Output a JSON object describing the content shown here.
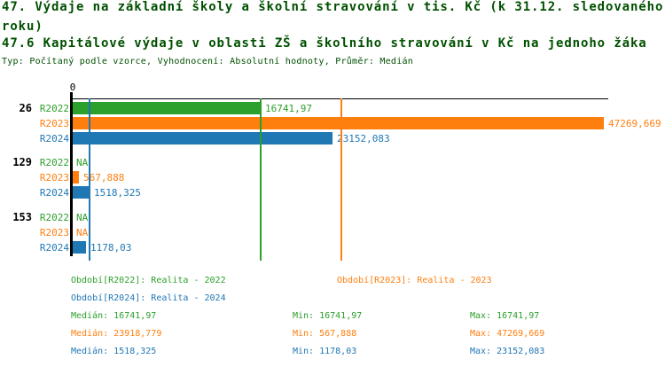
{
  "title": {
    "line1": "47. Výdaje na základní školy a školní stravování v tis. Kč (k 31.12. sledovaného",
    "line2": "roku)",
    "line3": "47.6 Kapitálové výdaje v oblasti ZŠ a školního stravování v Kč na jednoho žáka",
    "subtitle": "Typ: Počítaný podle vzorce, Vyhodnocení: Absolutní hodnoty, Průměr: Medián"
  },
  "colors": {
    "title_text": "#005000",
    "axis": "#000000",
    "series": {
      "R2022": "#2ca02c",
      "R2023": "#ff7f0e",
      "R2024": "#1f77b4"
    }
  },
  "chart_data": {
    "type": "bar",
    "orientation": "horizontal",
    "axis_zero_label": "0",
    "xlim": [
      0,
      47700
    ],
    "grid": false,
    "series_names": [
      "R2022",
      "R2023",
      "R2024"
    ],
    "groups": [
      {
        "label": "26",
        "bars": [
          {
            "series": "R2022",
            "value": 16741.97,
            "display": "16741,97"
          },
          {
            "series": "R2023",
            "value": 47269.669,
            "display": "47269,669"
          },
          {
            "series": "R2024",
            "value": 23152.083,
            "display": "23152,083"
          }
        ]
      },
      {
        "label": "129",
        "bars": [
          {
            "series": "R2022",
            "value": null,
            "display": "NA"
          },
          {
            "series": "R2023",
            "value": 567.888,
            "display": "567,888"
          },
          {
            "series": "R2024",
            "value": 1518.325,
            "display": "1518,325"
          }
        ]
      },
      {
        "label": "153",
        "bars": [
          {
            "series": "R2022",
            "value": null,
            "display": "NA"
          },
          {
            "series": "R2023",
            "value": null,
            "display": "NA"
          },
          {
            "series": "R2024",
            "value": 1178.03,
            "display": "1178,03"
          }
        ]
      }
    ],
    "medians": [
      {
        "series": "R2022",
        "value": 16741.97
      },
      {
        "series": "R2023",
        "value": 23918.779
      },
      {
        "series": "R2024",
        "value": 1518.325
      }
    ]
  },
  "legend": [
    {
      "series": "R2022",
      "label": "Období[R2022]: Realita - 2022"
    },
    {
      "series": "R2023",
      "label": "Období[R2023]: Realita - 2023"
    },
    {
      "series": "R2024",
      "label": "Období[R2024]: Realita - 2024"
    }
  ],
  "stats": [
    {
      "series": "R2022",
      "median": "Medián: 16741,97",
      "min": "Min: 16741,97",
      "max": "Max: 16741,97"
    },
    {
      "series": "R2023",
      "median": "Medián: 23918,779",
      "min": "Min: 567,888",
      "max": "Max: 47269,669"
    },
    {
      "series": "R2024",
      "median": "Medián: 1518,325",
      "min": "Min: 1178,03",
      "max": "Max: 23152,083"
    }
  ]
}
